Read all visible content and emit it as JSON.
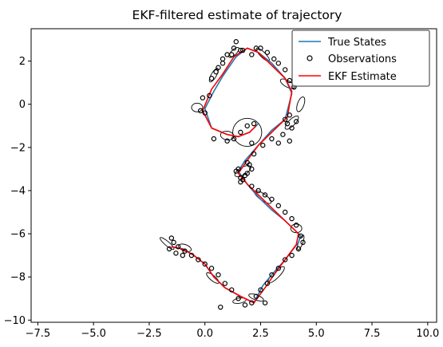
{
  "chart_data": {
    "type": "line",
    "title": "EKF-filtered estimate of trajectory",
    "xlabel": "",
    "ylabel": "",
    "xlim": [
      -7.8,
      10.4
    ],
    "ylim": [
      -10.1,
      3.5
    ],
    "x_ticks": [
      -7.5,
      -5.0,
      -2.5,
      0.0,
      2.5,
      5.0,
      7.5,
      10.0
    ],
    "x_tick_labels": [
      "−7.5",
      "−5.0",
      "−2.5",
      "0.0",
      "2.5",
      "5.0",
      "7.5",
      "10.0"
    ],
    "y_ticks": [
      2,
      0,
      -2,
      -4,
      -6,
      -8,
      -10
    ],
    "y_tick_labels": [
      "2",
      "0",
      "−2",
      "−4",
      "−6",
      "−8",
      "−10"
    ],
    "grid": false,
    "legend_position": "top-right",
    "legend": [
      {
        "label": "True States",
        "kind": "line",
        "color": "#1f77b4"
      },
      {
        "label": "Observations",
        "kind": "marker",
        "color": "#000000"
      },
      {
        "label": "EKF Estimate",
        "kind": "line",
        "color": "#ff0000"
      }
    ],
    "series": [
      {
        "name": "True States",
        "color": "#1f77b4",
        "x": [
          2.4,
          2.0,
          1.5,
          1.0,
          0.3,
          0.0,
          0.4,
          0.8,
          1.4,
          1.9,
          2.4,
          3.0,
          3.6,
          3.9,
          3.6,
          3.0,
          2.4,
          1.8,
          1.5,
          1.9,
          2.4,
          3.0,
          3.6,
          4.0,
          4.3,
          4.2,
          3.6,
          3.0,
          2.6,
          2.2,
          1.6,
          0.9,
          0.4,
          0.0,
          -0.5,
          -1.0,
          -1.5
        ],
        "y": [
          -0.9,
          -1.3,
          -1.5,
          -1.4,
          -1.1,
          -0.2,
          0.6,
          1.3,
          2.2,
          2.6,
          2.4,
          1.9,
          1.2,
          0.5,
          -0.7,
          -1.2,
          -1.9,
          -2.6,
          -3.1,
          -3.7,
          -4.3,
          -4.9,
          -5.4,
          -5.8,
          -6.1,
          -6.4,
          -7.2,
          -7.9,
          -8.4,
          -9.2,
          -8.9,
          -8.5,
          -8.0,
          -7.4,
          -7.0,
          -6.7,
          -6.6
        ]
      },
      {
        "name": "EKF Estimate",
        "color": "#ff0000",
        "x": [
          2.3,
          2.0,
          1.5,
          1.0,
          0.3,
          -0.1,
          0.3,
          0.8,
          1.3,
          1.9,
          2.4,
          3.0,
          3.6,
          3.9,
          3.7,
          3.1,
          2.4,
          1.9,
          1.5,
          1.9,
          2.5,
          3.1,
          3.6,
          4.0,
          4.2,
          4.1,
          3.6,
          3.1,
          2.7,
          2.2,
          1.6,
          0.9,
          0.4,
          0.0,
          -0.5,
          -1.0,
          -1.5
        ],
        "y": [
          -1.0,
          -1.3,
          -1.5,
          -1.4,
          -1.1,
          -0.3,
          0.7,
          1.4,
          2.2,
          2.6,
          2.4,
          1.8,
          1.2,
          0.6,
          -0.6,
          -1.2,
          -1.9,
          -2.6,
          -3.2,
          -3.7,
          -4.3,
          -4.9,
          -5.4,
          -5.8,
          -6.0,
          -6.5,
          -7.2,
          -7.9,
          -8.5,
          -9.2,
          -8.9,
          -8.5,
          -8.0,
          -7.4,
          -7.0,
          -6.7,
          -6.6
        ]
      }
    ],
    "observations": {
      "x": [
        1.4,
        1.6,
        1.2,
        0.8,
        0.6,
        0.3,
        -0.1,
        -0.2,
        0.0,
        0.2,
        0.5,
        0.8,
        1.0,
        1.3,
        1.7,
        2.1,
        2.3,
        2.5,
        2.8,
        3.1,
        3.3,
        3.6,
        3.8,
        4.0,
        4.1,
        3.9,
        3.7,
        3.5,
        3.3,
        3.0,
        2.6,
        2.2,
        1.9,
        2.1,
        1.8,
        1.5,
        1.6,
        1.4,
        1.7,
        1.9,
        2.0,
        1.6,
        2.1,
        2.4,
        2.7,
        3.0,
        3.3,
        3.6,
        3.9,
        4.1,
        4.3,
        4.4,
        4.2,
        3.9,
        3.6,
        3.3,
        3.0,
        2.8,
        2.5,
        2.3,
        2.1,
        1.8,
        1.5,
        1.2,
        0.9,
        0.6,
        0.3,
        0.0,
        -0.3,
        -0.6,
        -0.9,
        -1.2,
        -1.4,
        -1.5,
        -1.6,
        -1.3,
        -1.0,
        0.4,
        1.0,
        1.3,
        1.6,
        1.9,
        2.2,
        2.1,
        3.8,
        3.6,
        4.0,
        3.8,
        2.7,
        0.7
      ],
      "y": [
        2.9,
        2.5,
        2.3,
        2.1,
        1.7,
        1.2,
        0.3,
        -0.3,
        -0.4,
        0.4,
        1.5,
        1.9,
        2.3,
        2.6,
        2.5,
        2.3,
        2.6,
        2.6,
        2.4,
        2.1,
        1.9,
        1.6,
        1.1,
        0.8,
        -0.8,
        -1.1,
        -0.9,
        -1.4,
        -1.8,
        -1.6,
        -1.9,
        -2.3,
        -2.7,
        -3.0,
        -3.3,
        -3.0,
        -3.4,
        -3.1,
        -3.5,
        -3.2,
        -2.8,
        -3.6,
        -3.8,
        -4.0,
        -4.2,
        -4.4,
        -4.7,
        -5.0,
        -5.3,
        -5.6,
        -6.1,
        -6.4,
        -6.7,
        -7.0,
        -7.2,
        -7.6,
        -7.9,
        -8.3,
        -8.6,
        -8.9,
        -9.2,
        -9.3,
        -9.0,
        -8.6,
        -8.3,
        -7.9,
        -7.6,
        -7.4,
        -7.2,
        -7.0,
        -6.8,
        -6.6,
        -6.4,
        -6.2,
        -6.7,
        -6.9,
        -7.0,
        -1.6,
        -1.7,
        -1.6,
        -1.3,
        -1.0,
        -0.9,
        -1.8,
        -1.7,
        -0.7,
        0.8,
        -0.5,
        -9.2,
        -9.4
      ],
      "color": "#000000"
    },
    "covariance_ellipses": [
      {
        "cx": 1.9,
        "cy": -1.3,
        "rx": 0.65,
        "ry": 0.65,
        "angle": 0
      },
      {
        "cx": 1.0,
        "cy": -1.45,
        "rx": 0.3,
        "ry": 0.2,
        "angle": -10
      },
      {
        "cx": -0.35,
        "cy": -0.15,
        "rx": 0.25,
        "ry": 0.2,
        "angle": 0
      },
      {
        "cx": 0.4,
        "cy": 1.35,
        "rx": 0.35,
        "ry": 0.12,
        "angle": 60
      },
      {
        "cx": 1.3,
        "cy": 2.4,
        "rx": 0.3,
        "ry": 0.12,
        "angle": 45
      },
      {
        "cx": 2.6,
        "cy": 2.3,
        "rx": 0.4,
        "ry": 0.12,
        "angle": -45
      },
      {
        "cx": 3.7,
        "cy": 0.95,
        "rx": 0.35,
        "ry": 0.15,
        "angle": -30
      },
      {
        "cx": 4.3,
        "cy": 0.0,
        "rx": 0.35,
        "ry": 0.15,
        "angle": 70
      },
      {
        "cx": 3.9,
        "cy": -0.85,
        "rx": 0.4,
        "ry": 0.15,
        "angle": 45
      },
      {
        "cx": 1.7,
        "cy": -3.1,
        "rx": 0.4,
        "ry": 0.18,
        "angle": 30
      },
      {
        "cx": 2.6,
        "cy": -4.3,
        "rx": 0.45,
        "ry": 0.15,
        "angle": -35
      },
      {
        "cx": 4.1,
        "cy": -5.75,
        "rx": 0.25,
        "ry": 0.2,
        "angle": 0
      },
      {
        "cx": 4.3,
        "cy": -6.4,
        "rx": 0.35,
        "ry": 0.1,
        "angle": 70
      },
      {
        "cx": 3.2,
        "cy": -7.9,
        "rx": 0.5,
        "ry": 0.15,
        "angle": 45
      },
      {
        "cx": 2.3,
        "cy": -8.95,
        "rx": 0.35,
        "ry": 0.12,
        "angle": -20
      },
      {
        "cx": 1.55,
        "cy": -9.1,
        "rx": 0.3,
        "ry": 0.12,
        "angle": 10
      },
      {
        "cx": 0.35,
        "cy": -8.05,
        "rx": 0.35,
        "ry": 0.12,
        "angle": -40
      },
      {
        "cx": -0.9,
        "cy": -6.65,
        "rx": 0.3,
        "ry": 0.15,
        "angle": -20
      },
      {
        "cx": -1.7,
        "cy": -6.45,
        "rx": 0.4,
        "ry": 0.1,
        "angle": -40
      }
    ]
  }
}
